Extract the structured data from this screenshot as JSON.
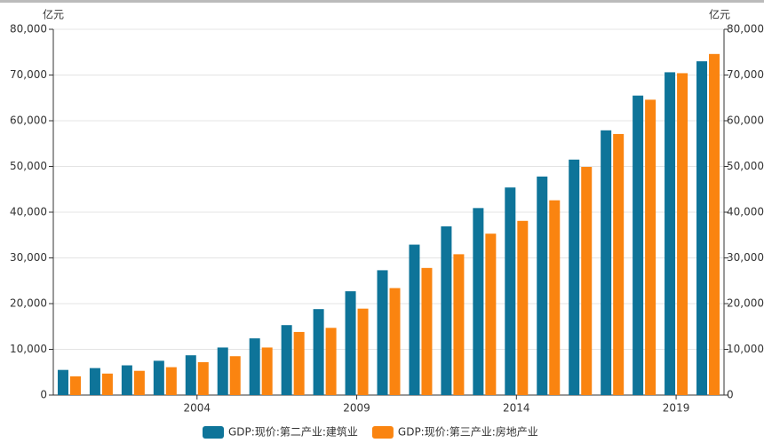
{
  "chart_data": {
    "type": "bar",
    "y_label": "亿元",
    "y2_label": "亿元",
    "categories": [
      null,
      null,
      null,
      null,
      "2004",
      null,
      null,
      null,
      null,
      "2009",
      null,
      null,
      null,
      null,
      "2014",
      null,
      null,
      null,
      null,
      "2019",
      null
    ],
    "series": [
      {
        "name": "GDP:现价:第二产业:建筑业",
        "color": "#0e7499",
        "values": [
          5500,
          5900,
          6500,
          7500,
          8700,
          10400,
          12400,
          15300,
          18800,
          22700,
          27300,
          32900,
          36900,
          40900,
          45400,
          47800,
          51500,
          57900,
          65500,
          70600,
          73000
        ]
      },
      {
        "name": "GDP:现价:第三产业:房地产业",
        "color": "#fa8410",
        "axis": "y2",
        "values": [
          4100,
          4700,
          5300,
          6100,
          7200,
          8500,
          10400,
          13800,
          14700,
          18900,
          23400,
          27800,
          30800,
          35300,
          38100,
          42600,
          49900,
          57100,
          64600,
          70400,
          74600
        ]
      }
    ],
    "ylim": [
      0,
      80000
    ],
    "yticks": [
      0,
      {
        "value": 10000,
        "label": "10,000"
      },
      {
        "value": 20000,
        "label": "20,000"
      },
      {
        "value": 30000,
        "label": "30,000"
      },
      {
        "value": 40000,
        "label": "40,000"
      },
      {
        "value": 50000,
        "label": "50,000"
      },
      {
        "value": 60000,
        "label": "60,000"
      },
      {
        "value": 70000,
        "label": "70,000"
      },
      {
        "value": 80000,
        "label": "80,000"
      }
    ],
    "y2lim": [
      0,
      80000
    ],
    "y2ticks": [
      0,
      {
        "value": 10000,
        "label": "10,000"
      },
      {
        "value": 20000,
        "label": "20,000"
      },
      {
        "value": 30000,
        "label": "30,000"
      },
      {
        "value": 40000,
        "label": "40,000"
      },
      {
        "value": 50000,
        "label": "50,000"
      },
      {
        "value": 60000,
        "label": "60,000"
      },
      {
        "value": 70000,
        "label": "70,000"
      },
      {
        "value": 80000,
        "label": "80,000"
      }
    ],
    "grid": true,
    "legend": "bottom"
  }
}
